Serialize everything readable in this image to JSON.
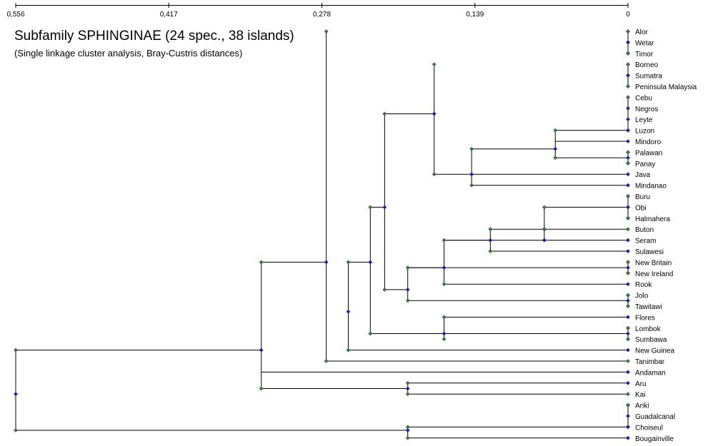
{
  "title": "Subfamily SPHINGINAE (24 spec., 38 islands)",
  "subtitle": "(Single linkage cluster analysis, Bray-Custris distances)",
  "axis": {
    "ticks": [
      {
        "value": 0.556,
        "label": "0,556"
      },
      {
        "value": 0.417,
        "label": "0,417"
      },
      {
        "value": 0.278,
        "label": "0,278"
      },
      {
        "value": 0.139,
        "label": "0,139"
      },
      {
        "value": 0,
        "label": "0"
      }
    ],
    "range": [
      0.556,
      0
    ]
  },
  "colors": {
    "line": "#000000",
    "node_green": "#2e8b2e",
    "node_blue": "#1a1ad0"
  },
  "leaves": [
    "Alor",
    "Wetar",
    "Timor",
    "Borneo",
    "Sumatra",
    "Peninsula Malaysia",
    "Cebu",
    "Negros",
    "Leyte",
    "Luzon",
    "Mindoro",
    "Palawan",
    "Panay",
    "Java",
    "Mindanao",
    "Buru",
    "Obi",
    "Halmahera",
    "Buton",
    "Seram",
    "Sulawesi",
    "New Britain",
    "New Ireland",
    "Rook",
    "Jolo",
    "Tawitawi",
    "Flores",
    "Lombok",
    "Sumbawa",
    "New Guinea",
    "Tanimbar",
    "Andaman",
    "Aru",
    "Kai",
    "Ariki",
    "Guadalcanal",
    "Choiseul",
    "Bougainville"
  ],
  "clusters": [
    {
      "top": 0,
      "bot": 2,
      "mid": 1,
      "h": 0
    },
    {
      "top": 3,
      "bot": 5,
      "mid": 4,
      "h": 0
    },
    {
      "top": 6,
      "bot": 9,
      "mid": 9,
      "h": 0
    },
    {
      "top": 11,
      "bot": 12,
      "mid": 11.5,
      "h": 0
    },
    {
      "top": 15,
      "bot": 17,
      "mid": 16,
      "h": 0
    },
    {
      "top": 21,
      "bot": 22,
      "mid": 21.5,
      "h": 0
    },
    {
      "top": 24,
      "bot": 25,
      "mid": 24.5,
      "h": 0
    },
    {
      "top": 27,
      "bot": 28,
      "mid": 27.5,
      "h": 0
    },
    {
      "top": 34,
      "bot": 36,
      "mid": 36,
      "h": 0
    },
    {
      "top": 9,
      "bot": 11.5,
      "mid": 10.7,
      "h": 0.066
    },
    {
      "top": 16,
      "bot": 18,
      "mid": 18,
      "h": 0.076
    },
    {
      "top": 18,
      "bot": 19,
      "mid": 19,
      "h": 0.076
    },
    {
      "top": 18,
      "bot": 20,
      "mid": 19,
      "h": 0.125
    },
    {
      "top": 10.7,
      "bot": 14,
      "mid": 13,
      "h": 0.142
    },
    {
      "top": 3,
      "bot": 13,
      "mid": 7.5,
      "h": 0.176
    },
    {
      "top": 19,
      "bot": 23,
      "mid": 21.5,
      "h": 0.167
    },
    {
      "top": 21.5,
      "bot": 24.5,
      "mid": 23.5,
      "h": 0.2
    },
    {
      "top": 26,
      "bot": 28,
      "mid": 27.5,
      "h": 0.167
    },
    {
      "top": 32,
      "bot": 33,
      "mid": 32.5,
      "h": 0.2
    },
    {
      "top": 36,
      "bot": 37,
      "mid": 36.3,
      "h": 0.2
    },
    {
      "top": 7.5,
      "bot": 23.5,
      "mid": 16,
      "h": 0.221
    },
    {
      "top": 16,
      "bot": 27.5,
      "mid": 21,
      "h": 0.234
    },
    {
      "top": 21,
      "bot": 29,
      "mid": 25.5,
      "h": 0.254
    },
    {
      "top": 0,
      "bot": 30,
      "mid": 21,
      "h": 0.274
    },
    {
      "top": 21,
      "bot": 32.5,
      "mid": 29,
      "h": 0.333
    },
    {
      "top": 29,
      "bot": 36.3,
      "mid": 33,
      "h": 0.556
    }
  ]
}
